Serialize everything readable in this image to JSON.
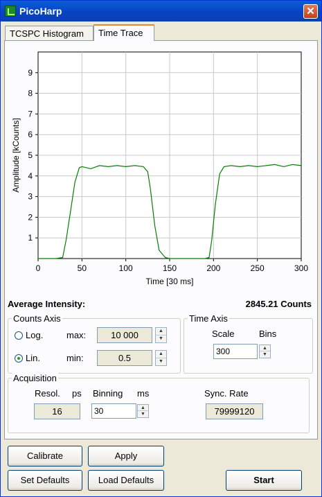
{
  "window": {
    "title": "PicoHarp",
    "close_glyph": "✕"
  },
  "tabs": [
    {
      "label": "TCSPC Histogram",
      "active": false
    },
    {
      "label": "Time Trace",
      "active": true
    }
  ],
  "chart_data": {
    "type": "line",
    "xlabel": "Time [30 ms]",
    "ylabel": "Amplitude [kCounts]",
    "xlim": [
      0,
      300
    ],
    "ylim": [
      0,
      10
    ],
    "xticks": [
      0,
      50,
      100,
      150,
      200,
      250,
      300
    ],
    "yticks": [
      1,
      2,
      3,
      4,
      5,
      6,
      7,
      8,
      9
    ],
    "grid": true,
    "series_color": "#008000",
    "x": [
      0,
      10,
      20,
      28,
      32,
      37,
      42,
      47,
      50,
      60,
      70,
      80,
      90,
      100,
      110,
      120,
      125,
      128,
      133,
      138,
      145,
      150,
      160,
      170,
      180,
      190,
      195,
      198,
      202,
      207,
      212,
      220,
      230,
      240,
      250,
      260,
      270,
      280,
      290,
      300
    ],
    "y": [
      0,
      0,
      0,
      0.05,
      0.9,
      2.3,
      3.7,
      4.4,
      4.45,
      4.35,
      4.5,
      4.45,
      4.5,
      4.45,
      4.5,
      4.45,
      4.2,
      3.4,
      1.6,
      0.4,
      0.05,
      0,
      0,
      0,
      0,
      0,
      0.05,
      0.9,
      2.6,
      4.1,
      4.45,
      4.5,
      4.45,
      4.5,
      4.45,
      4.5,
      4.55,
      4.45,
      4.55,
      4.5
    ]
  },
  "average_intensity": {
    "label": "Average Intensity:",
    "value": "2845.21 Counts"
  },
  "counts_axis": {
    "title": "Counts Axis",
    "log_label": "Log.",
    "lin_label": "Lin.",
    "selected": "Lin.",
    "max_label": "max:",
    "max_value": "10 000",
    "min_label": "min:",
    "min_value": "0.5"
  },
  "time_axis": {
    "title": "Time Axis",
    "scale_label": "Scale",
    "bins_label": "Bins",
    "value": "300"
  },
  "acquisition": {
    "title": "Acquisition",
    "resol_label": "Resol.",
    "ps_label": "ps",
    "binning_label": "Binning",
    "ms_label": "ms",
    "sync_label": "Sync. Rate",
    "resol_value": "16",
    "binning_value": "30",
    "sync_value": "79999120"
  },
  "buttons": {
    "calibrate": "Calibrate",
    "apply": "Apply",
    "set_defaults": "Set Defaults",
    "load_defaults": "Load Defaults",
    "start": "Start"
  }
}
